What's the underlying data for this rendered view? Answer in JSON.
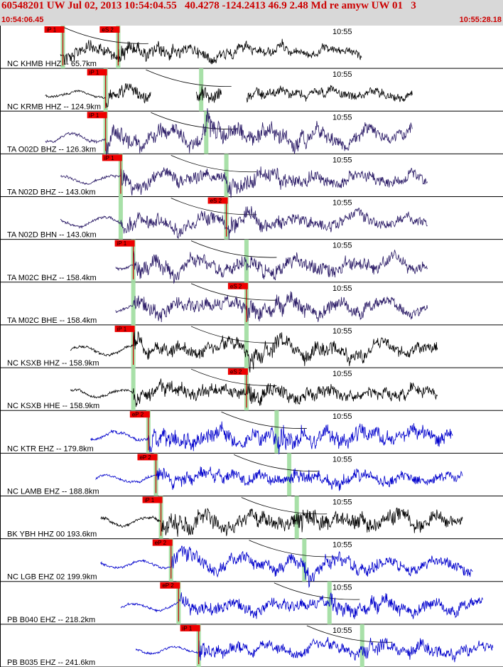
{
  "header": {
    "title": "60548201 UW Jul 02, 2013 10:54:04.55   40.4278 -124.2413 46.9 2.48 Md re amyw UW 01   3",
    "start_time": "10:54:06.45",
    "end_time": "10:55:28.18"
  },
  "colors": {
    "header_bg": "#d8d8d8",
    "header_text": "#cc0000",
    "pick_box": "#ee0000",
    "phase_band": "#a8e0a8",
    "theoretical_curve": "#000000"
  },
  "chart_data": {
    "type": "line",
    "title": "60548201 UW Jul 02, 2013 10:54:04.55   40.4278 -124.2413 46.9 2.48 Md re amyw UW 01   3",
    "x_axis": {
      "start": "10:54:06.45",
      "end": "10:55:28.18",
      "tick_label": "10:55"
    },
    "series": [
      {
        "name": "NC KHMB HHZ -- 65.7km",
        "color": "#000000",
        "picks": [
          {
            "label": "iP 1",
            "t": "10:54:16"
          },
          {
            "label": "eS 2",
            "t": "10:54:25"
          }
        ],
        "start": 0.12,
        "end": 0.72,
        "amp": 0.45,
        "p": 0.125,
        "s": 0.235
      },
      {
        "name": "NC KRMB HHZ -- 124.9km",
        "color": "#000000",
        "picks": [
          {
            "label": "iP 1",
            "t": "10:54:22"
          }
        ],
        "start": 0.09,
        "end": 0.82,
        "amp": 0.4,
        "p": 0.21,
        "s": 0.4,
        "gaps": [
          [
            0.3,
            0.39
          ],
          [
            0.44,
            0.49
          ]
        ]
      },
      {
        "name": "TA O02D BHZ -- 126.3km",
        "color": "#2a1a66",
        "picks": [
          {
            "label": "iP 1",
            "t": "10:54:22"
          }
        ],
        "start": 0.09,
        "end": 0.82,
        "amp": 0.6,
        "p": 0.21,
        "s": 0.41
      },
      {
        "name": "TA N02D BHZ -- 143.0km",
        "color": "#2a1a66",
        "picks": [
          {
            "label": "iP 1",
            "t": "10:54:24"
          }
        ],
        "start": 0.12,
        "end": 0.85,
        "amp": 0.5,
        "p": 0.24,
        "s": 0.45
      },
      {
        "name": "TA N02D BHN -- 143.0km",
        "color": "#2a1a66",
        "picks": [
          {
            "label": "eS 2",
            "t": "10:54:39"
          }
        ],
        "start": 0.12,
        "end": 0.85,
        "amp": 0.5,
        "p": 0.24,
        "s": 0.45
      },
      {
        "name": "TA M02C BHZ -- 158.4km",
        "color": "#2a1a66",
        "picks": [
          {
            "label": "iP 1",
            "t": "10:54:26"
          }
        ],
        "start": 0.23,
        "end": 0.85,
        "amp": 0.55,
        "p": 0.265,
        "s": 0.49
      },
      {
        "name": "TA M02C BHE -- 158.4km",
        "color": "#2a1a66",
        "picks": [
          {
            "label": "eS 2",
            "t": "10:54:42"
          }
        ],
        "start": 0.23,
        "end": 0.85,
        "amp": 0.5,
        "p": 0.265,
        "s": 0.49
      },
      {
        "name": "NC KSXB HHZ -- 158.9km",
        "color": "#000000",
        "picks": [
          {
            "label": "iP 1",
            "t": "10:54:26"
          }
        ],
        "start": 0.14,
        "end": 0.87,
        "amp": 0.55,
        "p": 0.265,
        "s": 0.49
      },
      {
        "name": "NC KSXB HHE -- 158.9km",
        "color": "#000000",
        "picks": [
          {
            "label": "eS 2",
            "t": "10:54:42"
          }
        ],
        "start": 0.14,
        "end": 0.87,
        "amp": 0.5,
        "p": 0.265,
        "s": 0.49
      },
      {
        "name": "NC KTR EHZ -- 179.8km",
        "color": "#0000cc",
        "picks": [
          {
            "label": "eP 2",
            "t": "10:54:28"
          }
        ],
        "start": 0.18,
        "end": 0.9,
        "amp": 0.6,
        "p": 0.295,
        "s": 0.55
      },
      {
        "name": "NC LAMB EHZ -- 188.8km",
        "color": "#0000cc",
        "picks": [
          {
            "label": "eP 2",
            "t": "10:54:30"
          }
        ],
        "start": 0.19,
        "end": 0.92,
        "amp": 0.45,
        "p": 0.31,
        "s": 0.575
      },
      {
        "name": "BK YBH HHZ 00 193.6km",
        "color": "#000000",
        "picks": [
          {
            "label": "iP 1",
            "t": "10:54:30"
          }
        ],
        "start": 0.2,
        "end": 0.92,
        "amp": 0.6,
        "p": 0.32,
        "s": 0.59
      },
      {
        "name": "NC LGB EHZ 02 199.9km",
        "color": "#0000cc",
        "picks": [
          {
            "label": "eP 2",
            "t": "10:54:31"
          }
        ],
        "start": 0.2,
        "end": 0.94,
        "amp": 0.5,
        "p": 0.34,
        "s": 0.605
      },
      {
        "name": "PB B040 EHZ -- 218.2km",
        "color": "#0000cc",
        "picks": [
          {
            "label": "eP 2",
            "t": "10:54:33"
          }
        ],
        "start": 0.24,
        "end": 0.96,
        "amp": 0.45,
        "p": 0.355,
        "s": 0.655
      },
      {
        "name": "PB B035 EHZ -- 241.6km",
        "color": "#0000cc",
        "picks": [
          {
            "label": "iP 1",
            "t": "10:54:35"
          }
        ],
        "start": 0.27,
        "end": 0.98,
        "amp": 0.45,
        "p": 0.395,
        "s": 0.72
      }
    ]
  }
}
